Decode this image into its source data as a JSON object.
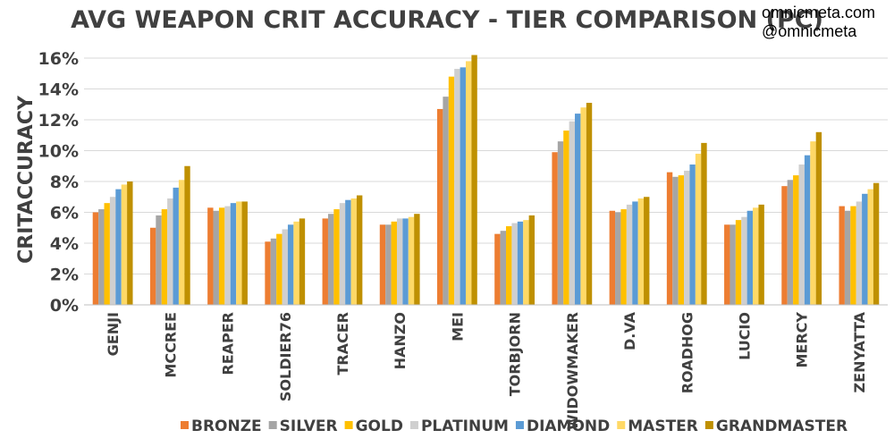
{
  "watermark": {
    "line1": "omnicmeta.com",
    "line2": "@omnicmeta"
  },
  "chart_data": {
    "type": "bar",
    "title": "AVG WEAPON CRIT ACCURACY - TIER COMPARISON (PC)",
    "xlabel": "",
    "ylabel": "CRITACCURACY",
    "ylim": [
      0,
      16
    ],
    "yticks": [
      0,
      2,
      4,
      6,
      8,
      10,
      12,
      14,
      16
    ],
    "ytick_suffix": "%",
    "grid": true,
    "legend_position": "bottom",
    "categories": [
      "GENJI",
      "MCCREE",
      "REAPER",
      "SOLDIER76",
      "TRACER",
      "HANZO",
      "MEI",
      "TORBJORN",
      "WIDOWMAKER",
      "D.VA",
      "ROADHOG",
      "LUCIO",
      "MERCY",
      "ZENYATTA"
    ],
    "series": [
      {
        "name": "BRONZE",
        "color": "#ED7D31",
        "values": [
          6.0,
          5.0,
          6.3,
          4.1,
          5.6,
          5.2,
          12.7,
          4.6,
          9.9,
          6.1,
          8.6,
          5.2,
          7.7,
          6.4
        ]
      },
      {
        "name": "SILVER",
        "color": "#A5A5A5",
        "values": [
          6.2,
          5.8,
          6.1,
          4.3,
          5.9,
          5.2,
          13.5,
          4.8,
          10.6,
          6.0,
          8.3,
          5.2,
          8.1,
          6.1
        ]
      },
      {
        "name": "GOLD",
        "color": "#FFC000",
        "values": [
          6.6,
          6.2,
          6.3,
          4.6,
          6.2,
          5.4,
          14.8,
          5.1,
          11.3,
          6.2,
          8.4,
          5.5,
          8.4,
          6.4
        ]
      },
      {
        "name": "PLATINUM",
        "color": "#CFCFCF",
        "values": [
          7.0,
          6.9,
          6.4,
          4.9,
          6.6,
          5.6,
          15.3,
          5.3,
          11.9,
          6.5,
          8.7,
          5.7,
          9.1,
          6.7
        ]
      },
      {
        "name": "DIAMOND",
        "color": "#5B9BD5",
        "values": [
          7.5,
          7.6,
          6.6,
          5.2,
          6.8,
          5.6,
          15.4,
          5.4,
          12.4,
          6.7,
          9.1,
          6.1,
          9.7,
          7.2
        ]
      },
      {
        "name": "MASTER",
        "color": "#FFD966",
        "values": [
          7.8,
          8.1,
          6.7,
          5.4,
          6.9,
          5.7,
          15.8,
          5.5,
          12.8,
          6.9,
          9.8,
          6.3,
          10.6,
          7.5
        ]
      },
      {
        "name": "GRANDMASTER",
        "color": "#BF9000",
        "values": [
          8.0,
          9.0,
          6.7,
          5.6,
          7.1,
          5.9,
          16.2,
          5.8,
          13.1,
          7.0,
          10.5,
          6.5,
          11.2,
          7.9
        ]
      }
    ]
  }
}
